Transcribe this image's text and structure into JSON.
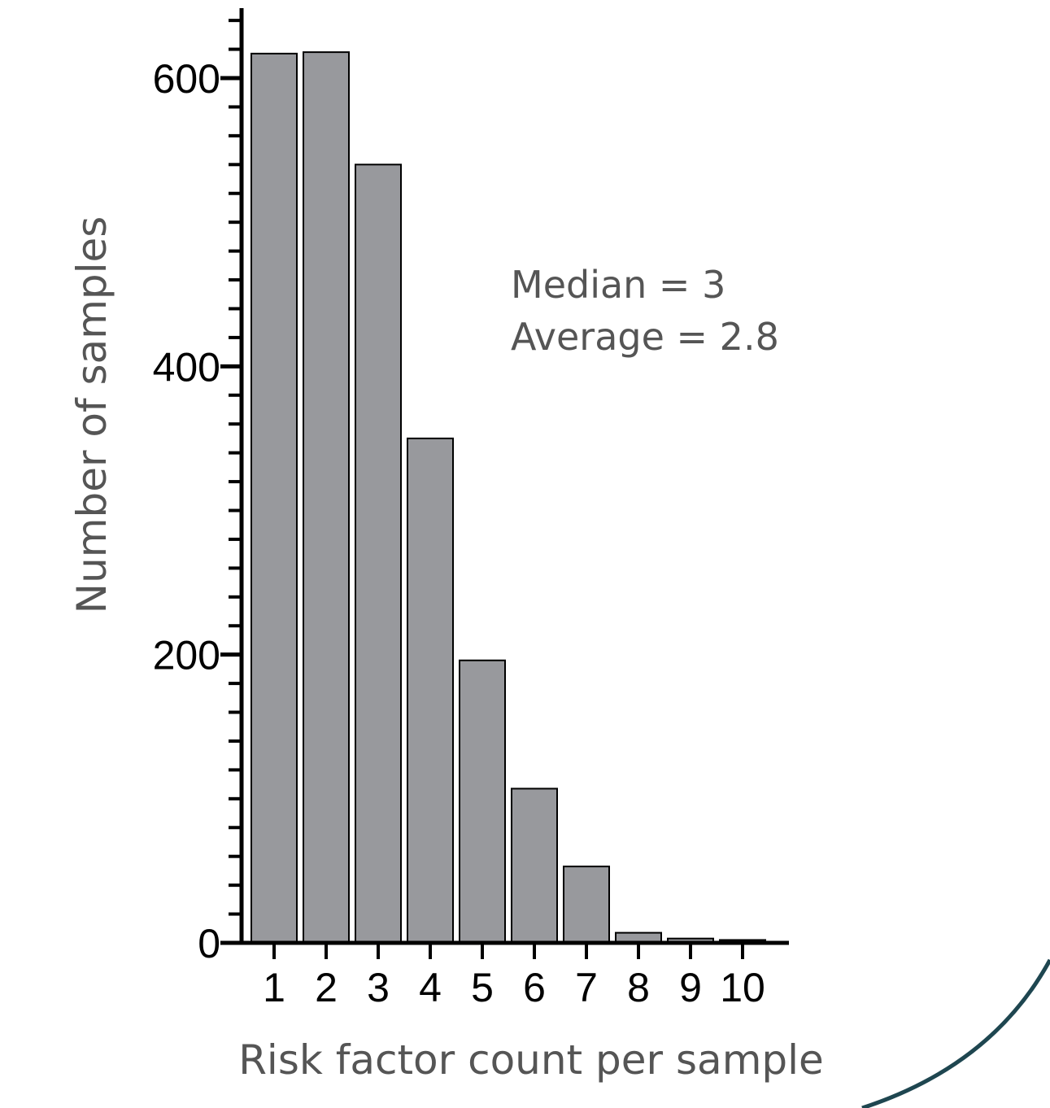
{
  "chart_data": {
    "type": "bar",
    "title": "",
    "xlabel": "Risk factor count per sample",
    "ylabel": "Number of samples",
    "categories": [
      "1",
      "2",
      "3",
      "4",
      "5",
      "6",
      "7",
      "8",
      "9",
      "10"
    ],
    "values": [
      617,
      618,
      540,
      350,
      196,
      107,
      53,
      7,
      3,
      2
    ],
    "ylim": [
      0,
      650
    ],
    "yticks": [
      "0",
      "200",
      "400",
      "600"
    ],
    "ytick_values": [
      0,
      200,
      400,
      600
    ],
    "minor_tick_step": 20,
    "grid": false,
    "legend": "none",
    "annotations": [
      "Median = 3",
      "Average = 2.8"
    ],
    "colors": {
      "bar_fill": "#98999d",
      "bar_stroke": "#000000",
      "axis": "#000000",
      "label_text": "#555555",
      "decoration_arc": "#1e4650"
    }
  }
}
